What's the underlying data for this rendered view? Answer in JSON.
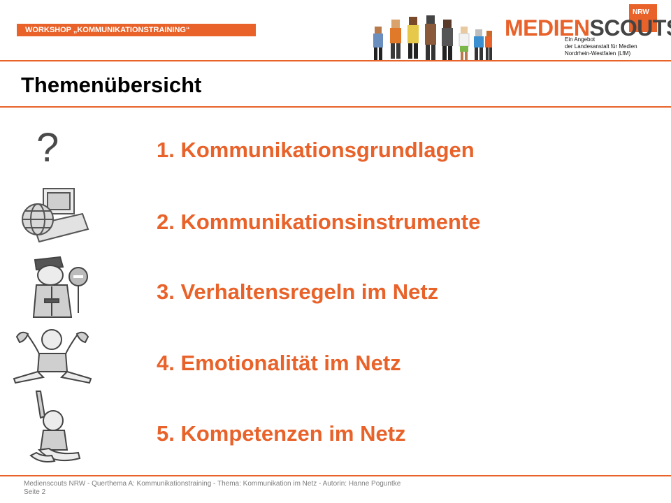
{
  "header": {
    "workshop": "WORKSHOP „KOMMUNIKATIONSTRAINING“",
    "brand_part1": "MEDIEN",
    "brand_part2": "SCOUTS",
    "brand_badge": "NRW",
    "brand_sub1": "Ein Angebot",
    "brand_sub2": "der Landesanstalt für Medien",
    "brand_sub3": "Nordrhein-Westfalen (LfM)"
  },
  "title": "Themenübersicht",
  "topics": [
    {
      "label": "1. Kommunikationsgrundlagen",
      "icon": "question-mark-icon"
    },
    {
      "label": "2. Kommunikationsinstrumente",
      "icon": "computer-globe-icon"
    },
    {
      "label": "3. Verhaltensregeln im Netz",
      "icon": "police-officer-stop-icon"
    },
    {
      "label": "4. Emotionalität im Netz",
      "icon": "child-splits-icon"
    },
    {
      "label": "5. Kompetenzen im Netz",
      "icon": "child-raising-hand-icon"
    }
  ],
  "question_mark": "?",
  "footer": {
    "line1": "Medienscouts NRW - Querthema A: Kommunikationstraining - Thema: Kommunikation im Netz - Autorin: Hanne Poguntke",
    "line2": "Seite 2"
  },
  "colors": {
    "accent": "#e8622a",
    "text": "#000000",
    "footer": "#7d7d7d"
  }
}
